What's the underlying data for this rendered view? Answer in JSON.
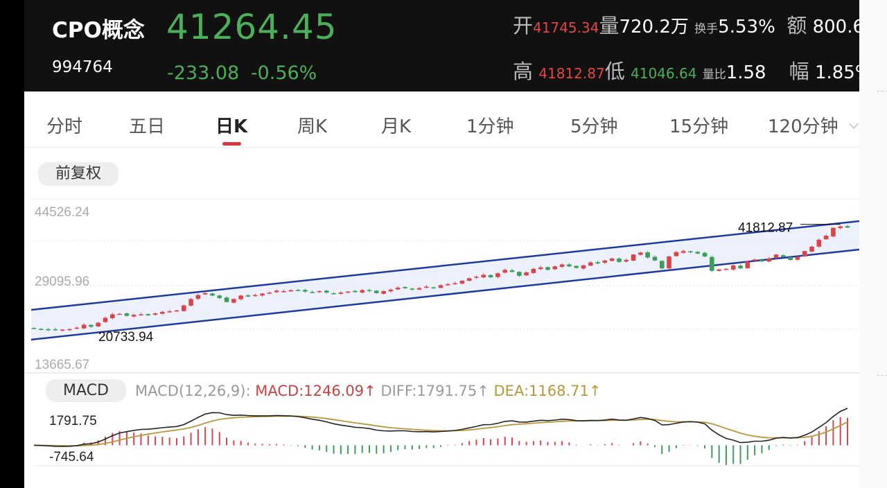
{
  "quote": {
    "name": "CPO概念",
    "code": "994764",
    "price": "41264.45",
    "change": "-233.08",
    "change_pct": "-0.56%",
    "open_label": "开",
    "open": "41745.34",
    "volume_label": "量",
    "volume": "720.2万",
    "turnover_label": "换手",
    "turnover": "5.53%",
    "amount_label": "额",
    "amount": "800.6",
    "high_label": "高",
    "high": "41812.87",
    "low_label": "低",
    "low": "41046.64",
    "vol_ratio_label": "量比",
    "vol_ratio": "1.58",
    "amplitude_label": "幅",
    "amplitude": "1.85%"
  },
  "tabs": [
    "分时",
    "五日",
    "日K",
    "周K",
    "月K",
    "1分钟",
    "5分钟",
    "15分钟",
    "120分钟"
  ],
  "active_tab": "日K",
  "adjust_label": "前复权",
  "chart_data": {
    "type": "candlestick",
    "y_ticks": [
      "44526.24",
      "29095.96",
      "13665.67"
    ],
    "annotations": {
      "high": "41812.87",
      "low": "20733.94"
    },
    "ylim": [
      13665.67,
      44526.24
    ],
    "close": [
      20800,
      20650,
      20550,
      20500,
      20600,
      20700,
      21000,
      21600,
      21200,
      22000,
      23000,
      23700,
      23800,
      23400,
      23600,
      23700,
      23500,
      23900,
      24200,
      24300,
      24500,
      25500,
      26800,
      27600,
      28000,
      27500,
      27000,
      26200,
      26800,
      27500,
      27300,
      27600,
      27900,
      28100,
      28500,
      28400,
      28600,
      28500,
      28300,
      28200,
      28400,
      28100,
      27900,
      28100,
      28300,
      28200,
      28600,
      28400,
      28000,
      28400,
      28700,
      29100,
      29000,
      28700,
      29000,
      29300,
      29100,
      29600,
      29800,
      30000,
      30500,
      31000,
      31300,
      31700,
      31200,
      32000,
      32700,
      32300,
      31500,
      32200,
      32900,
      33200,
      32700,
      33400,
      33800,
      33400,
      33100,
      33600,
      34200,
      34000,
      34600,
      35000,
      34300,
      34700,
      35800,
      36200,
      35200,
      34600,
      33000,
      35400,
      36300,
      36500,
      36300,
      36000,
      35400,
      32500,
      32800,
      32900,
      33600,
      33000,
      34400,
      34800,
      34400,
      35000,
      35800,
      35300,
      34700,
      35300,
      36500,
      37400,
      38800,
      39600,
      41200,
      41500,
      41264
    ]
  },
  "macd": {
    "label": "MACD",
    "params": "MACD(12,26,9):",
    "macd_value": "MACD:1246.09↑",
    "diff_value": "DIFF:1791.75↑",
    "dea_value": "DEA:1168.71↑",
    "y_ticks": [
      "1791.75",
      "-745.64"
    ]
  },
  "colors": {
    "up": "#d9434a",
    "down": "#3a9d5a",
    "channel": "#1f3a9e",
    "header_bg": "#111111",
    "dif": "#222222",
    "dea": "#b8973a"
  }
}
